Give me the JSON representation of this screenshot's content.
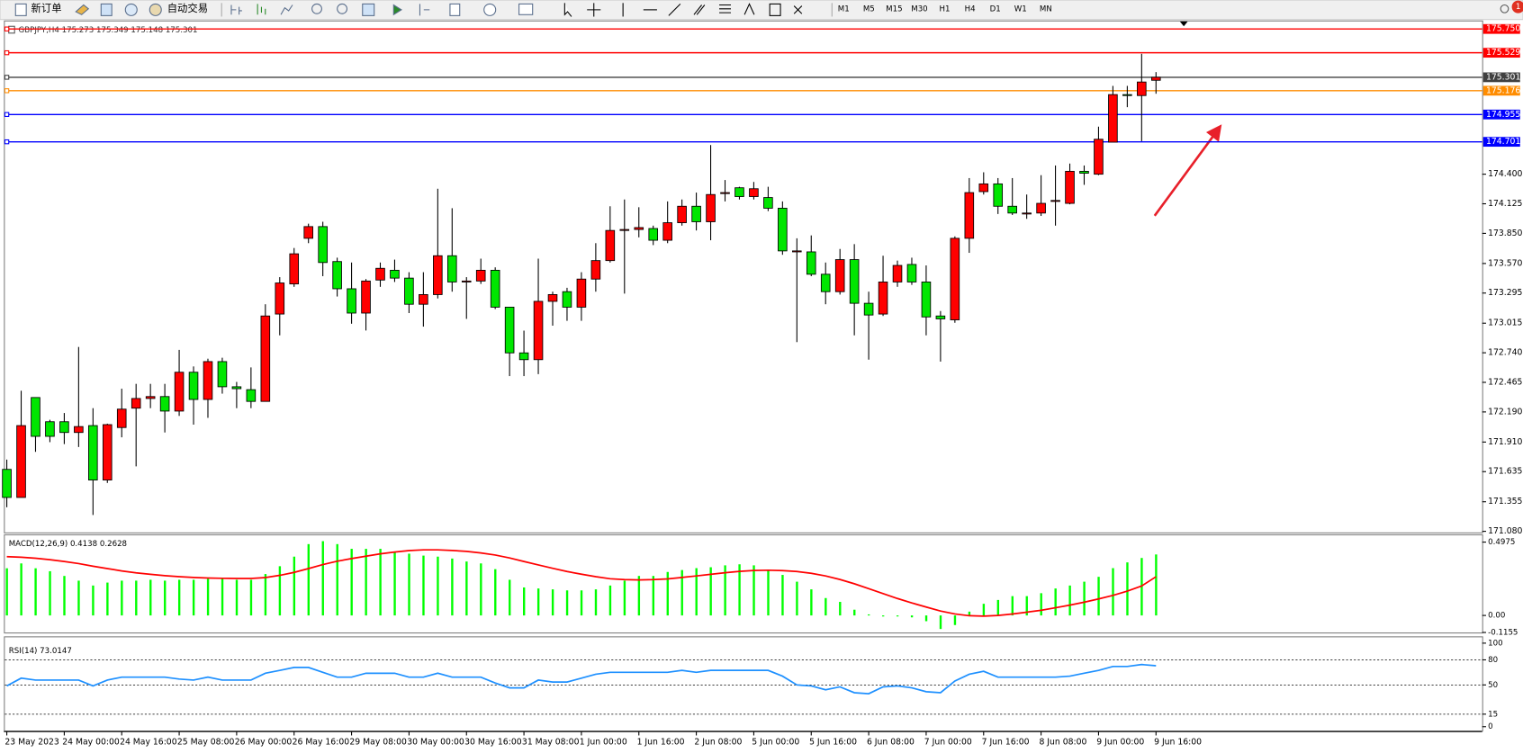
{
  "toolbar": {
    "buttons": [
      "新订单",
      "自动交易"
    ],
    "timeframes": [
      "M1",
      "M5",
      "M15",
      "M30",
      "H1",
      "H4",
      "D1",
      "W1",
      "MN"
    ],
    "notifications": "1"
  },
  "chart_data": [
    {
      "type": "candlestick",
      "title": "GBPJPY,H4  175.273 175.349 175.148 175.301",
      "categories": [
        "23 May 2023",
        null,
        null,
        null,
        "24 May 00:00",
        null,
        null,
        null,
        "24 May 16:00",
        null,
        null,
        null,
        "25 May 08:00",
        null,
        null,
        null,
        "26 May 00:00",
        null,
        null,
        null,
        "26 May 16:00",
        null,
        null,
        null,
        "29 May 08:00",
        null,
        null,
        null,
        "30 May 00:00",
        null,
        null,
        null,
        "30 May 16:00",
        null,
        null,
        null,
        "31 May 08:00",
        null,
        null,
        null,
        "1 Jun 00:00",
        null,
        null,
        null,
        "1 Jun 16:00",
        null,
        null,
        null,
        "2 Jun 08:00",
        null,
        null,
        null,
        "5 Jun 00:00",
        null,
        null,
        null,
        "5 Jun 16:00",
        null,
        null,
        null,
        "6 Jun 08:00",
        null,
        null,
        null,
        "7 Jun 00:00",
        null,
        null,
        null,
        "7 Jun 16:00",
        null,
        null,
        null,
        "8 Jun 08:00",
        null,
        null,
        null,
        "9 Jun 00:00",
        null,
        null,
        null,
        "9 Jun 16:00"
      ],
      "open": [
        171.656,
        171.395,
        172.324,
        172.099,
        172.099,
        171.999,
        172.063,
        171.557,
        172.045,
        172.225,
        172.315,
        172.333,
        172.198,
        172.559,
        172.306,
        172.658,
        172.424,
        172.397,
        172.288,
        173.1,
        173.38,
        173.804,
        173.913,
        173.588,
        173.335,
        173.109,
        173.416,
        173.507,
        173.434,
        173.191,
        173.281,
        173.642,
        173.407,
        173.407,
        173.507,
        173.164,
        172.739,
        172.676,
        173.218,
        173.308,
        173.164,
        173.425,
        173.597,
        173.877,
        173.886,
        173.895,
        173.786,
        173.949,
        174.102,
        173.958,
        174.229,
        174.274,
        174.192,
        174.183,
        174.084,
        173.687,
        173.678,
        173.47,
        173.308,
        173.606,
        173.2,
        173.1,
        173.398,
        173.561,
        173.398,
        173.082,
        173.046,
        173.804,
        174.238,
        174.31,
        174.102,
        174.039,
        174.039,
        174.147,
        174.129,
        174.427,
        174.4,
        174.698,
        175.14,
        175.131,
        175.273
      ],
      "high": [
        171.747,
        172.387,
        172.324,
        172.117,
        172.18,
        172.794,
        172.225,
        172.081,
        172.406,
        172.451,
        172.451,
        172.451,
        172.767,
        172.613,
        172.685,
        172.694,
        172.469,
        172.604,
        173.191,
        173.443,
        173.714,
        173.94,
        173.958,
        173.624,
        173.579,
        173.425,
        173.579,
        173.606,
        173.489,
        173.489,
        174.265,
        174.084,
        173.443,
        173.615,
        173.534,
        173.164,
        172.946,
        173.615,
        173.308,
        173.344,
        173.489,
        173.759,
        174.102,
        174.165,
        174.093,
        173.922,
        174.147,
        174.165,
        174.229,
        174.671,
        174.346,
        174.283,
        174.328,
        174.283,
        174.147,
        173.804,
        173.831,
        173.579,
        173.705,
        173.75,
        173.308,
        173.642,
        173.597,
        173.624,
        173.552,
        173.128,
        173.822,
        174.364,
        174.418,
        174.364,
        174.364,
        174.211,
        174.391,
        174.481,
        174.499,
        174.481,
        174.842,
        175.221,
        175.221,
        175.519,
        175.349
      ],
      "low": [
        171.304,
        171.395,
        171.819,
        171.909,
        171.891,
        171.864,
        171.232,
        171.53,
        171.954,
        171.684,
        172.225,
        171.999,
        172.153,
        172.072,
        172.135,
        172.36,
        172.225,
        172.225,
        172.288,
        172.902,
        173.353,
        173.759,
        173.452,
        173.263,
        173.01,
        172.947,
        173.353,
        173.398,
        173.109,
        172.983,
        173.245,
        173.308,
        173.055,
        173.38,
        173.146,
        172.523,
        172.523,
        172.541,
        172.992,
        173.037,
        173.037,
        173.308,
        173.579,
        173.29,
        173.813,
        173.741,
        173.759,
        173.922,
        173.877,
        173.786,
        174.147,
        174.165,
        174.165,
        174.057,
        173.651,
        172.839,
        173.452,
        173.191,
        173.281,
        172.902,
        172.676,
        173.082,
        173.353,
        173.371,
        172.902,
        172.658,
        173.019,
        173.669,
        174.211,
        174.03,
        174.021,
        173.985,
        174.012,
        173.922,
        174.12,
        174.301,
        174.391,
        174.698,
        175.023,
        174.707,
        175.148
      ],
      "close": [
        171.395,
        172.063,
        171.963,
        171.963,
        171.999,
        172.054,
        171.557,
        172.072,
        172.216,
        172.315,
        172.333,
        172.198,
        172.559,
        172.306,
        172.658,
        172.424,
        172.406,
        172.288,
        173.082,
        173.389,
        173.66,
        173.913,
        173.579,
        173.335,
        173.109,
        173.407,
        173.525,
        173.434,
        173.191,
        173.281,
        173.642,
        173.398,
        173.407,
        173.507,
        173.164,
        172.739,
        172.676,
        173.218,
        173.281,
        173.164,
        173.425,
        173.597,
        173.877,
        173.886,
        173.904,
        173.786,
        173.949,
        174.102,
        173.958,
        174.211,
        174.229,
        174.192,
        174.265,
        174.084,
        173.687,
        173.687,
        173.47,
        173.308,
        173.606,
        173.2,
        173.091,
        173.398,
        173.552,
        173.398,
        173.073,
        173.055,
        173.804,
        174.229,
        174.31,
        174.102,
        174.039,
        174.039,
        174.129,
        174.156,
        174.427,
        174.409,
        174.725,
        175.14,
        175.131,
        175.257,
        175.301
      ],
      "up_color": "#ff0000",
      "down_color": "#00e600",
      "ylim": [
        171.07,
        175.82
      ],
      "yticks": [
        {
          "value": 174.4,
          "label": "174.400"
        },
        174.125,
        {
          "value": 173.85,
          "label": "173.850"
        },
        {
          "value": 173.57,
          "label": "173.570"
        },
        173.295,
        173.015,
        {
          "value": 172.74,
          "label": "172.740"
        },
        172.465,
        {
          "value": 172.19,
          "label": "172.190"
        },
        {
          "value": 171.91,
          "label": "171.910"
        },
        171.635,
        171.355,
        {
          "value": 171.08,
          "label": "171.080"
        }
      ],
      "levels": [
        {
          "value": 175.75,
          "label": "175.750",
          "color": "#ff0000"
        },
        {
          "value": 175.529,
          "label": "175.529",
          "color": "#ff0000"
        },
        {
          "value": 175.301,
          "label": "175.301",
          "color": "#404040"
        },
        {
          "value": 175.176,
          "label": "175.176",
          "color": "#ff8c00"
        },
        {
          "value": 174.955,
          "label": "174.955",
          "color": "#0000ff"
        },
        {
          "value": 174.701,
          "label": "174.701",
          "color": "#0000ff"
        }
      ]
    },
    {
      "type": "macd",
      "title": "MACD(12,26,9) 0.4138 0.2628",
      "histogram": {
        "color": "#00ff00",
        "values": [
          0.32,
          0.353,
          0.32,
          0.3,
          0.268,
          0.236,
          0.203,
          0.223,
          0.236,
          0.236,
          0.242,
          0.236,
          0.242,
          0.242,
          0.249,
          0.249,
          0.242,
          0.242,
          0.281,
          0.334,
          0.399,
          0.484,
          0.504,
          0.484,
          0.452,
          0.452,
          0.452,
          0.432,
          0.419,
          0.406,
          0.399,
          0.386,
          0.366,
          0.353,
          0.314,
          0.242,
          0.19,
          0.183,
          0.177,
          0.17,
          0.17,
          0.177,
          0.203,
          0.236,
          0.268,
          0.268,
          0.295,
          0.308,
          0.321,
          0.327,
          0.34,
          0.347,
          0.34,
          0.308,
          0.275,
          0.229,
          0.177,
          0.118,
          0.092,
          0.039,
          0.007,
          -0.007,
          -0.007,
          -0.013,
          -0.039,
          -0.092,
          -0.065,
          0.026,
          0.079,
          0.105,
          0.131,
          0.131,
          0.151,
          0.183,
          0.203,
          0.229,
          0.262,
          0.321,
          0.36,
          0.39,
          0.4138
        ]
      },
      "signal": {
        "color": "#ff0000",
        "values": [
          0.399,
          0.395,
          0.388,
          0.378,
          0.366,
          0.352,
          0.334,
          0.318,
          0.302,
          0.289,
          0.279,
          0.27,
          0.263,
          0.258,
          0.254,
          0.252,
          0.251,
          0.251,
          0.257,
          0.272,
          0.292,
          0.318,
          0.345,
          0.368,
          0.386,
          0.402,
          0.418,
          0.43,
          0.44,
          0.445,
          0.445,
          0.441,
          0.435,
          0.424,
          0.41,
          0.39,
          0.366,
          0.343,
          0.32,
          0.298,
          0.28,
          0.263,
          0.249,
          0.243,
          0.241,
          0.243,
          0.248,
          0.258,
          0.268,
          0.279,
          0.29,
          0.299,
          0.305,
          0.307,
          0.304,
          0.298,
          0.286,
          0.268,
          0.244,
          0.215,
          0.182,
          0.148,
          0.115,
          0.085,
          0.057,
          0.03,
          0.01,
          -0.002,
          -0.005,
          0.0,
          0.01,
          0.022,
          0.035,
          0.052,
          0.07,
          0.09,
          0.112,
          0.136,
          0.165,
          0.2,
          0.2628
        ]
      },
      "ylim": [
        -0.1155,
        0.537
      ],
      "yticks": [
        0.4975,
        {
          "value": 0,
          "label": "0.00"
        },
        -0.1155
      ]
    },
    {
      "type": "line",
      "title": "RSI(14) 73.0147",
      "color": "#1e90ff",
      "values": [
        48.8,
        58.1,
        55.8,
        55.8,
        55.8,
        55.8,
        48.8,
        55.8,
        59.3,
        59.3,
        59.3,
        59.3,
        57.0,
        55.8,
        59.3,
        55.8,
        55.8,
        55.8,
        64.0,
        67.4,
        70.9,
        70.9,
        65.1,
        59.3,
        59.3,
        64.0,
        64.0,
        64.0,
        59.3,
        59.3,
        64.0,
        59.3,
        59.3,
        59.3,
        52.3,
        46.5,
        46.5,
        55.8,
        53.5,
        53.5,
        58.1,
        62.8,
        65.1,
        65.1,
        65.1,
        65.1,
        65.1,
        67.4,
        65.1,
        67.4,
        67.4,
        67.4,
        67.4,
        67.4,
        60.5,
        50.0,
        48.8,
        44.2,
        47.7,
        40.7,
        39.5,
        47.7,
        48.8,
        46.5,
        41.9,
        40.7,
        54.7,
        62.8,
        66.3,
        59.3,
        59.3,
        59.3,
        59.3,
        59.3,
        60.5,
        64.0,
        67.4,
        72.1,
        72.1,
        74.4,
        73.0147
      ],
      "ylim": [
        0,
        100
      ],
      "yticks": [
        100,
        80,
        50,
        15,
        0
      ],
      "grid": "dashed"
    }
  ]
}
